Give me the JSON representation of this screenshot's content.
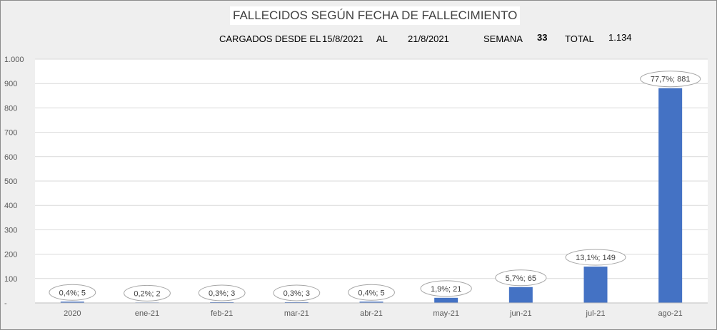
{
  "header": {
    "title": "FALLECIDOS SEGÚN FECHA DE FALLECIMIENTO",
    "cargados_label": "CARGADOS DESDE EL",
    "date_from": "15/8/2021",
    "al_label": "AL",
    "date_to": "21/8/2021",
    "semana_label": "SEMANA",
    "semana_value": "33",
    "total_label": "TOTAL",
    "total_value": "1.134"
  },
  "colors": {
    "bar": "#4472c4",
    "plot_background": "#ffffff",
    "outer_background": "#efefef",
    "gridline": "#d9d9d9",
    "label_border": "#a6a6a6"
  },
  "chart_data": {
    "type": "bar",
    "title": "FALLECIDOS SEGÚN FECHA DE FALLECIMIENTO",
    "xlabel": "",
    "ylabel": "",
    "categories": [
      "2020",
      "ene-21",
      "feb-21",
      "mar-21",
      "abr-21",
      "may-21",
      "jun-21",
      "jul-21",
      "ago-21"
    ],
    "values": [
      5,
      2,
      3,
      3,
      5,
      21,
      65,
      149,
      881
    ],
    "percent_labels": [
      "0,4%",
      "0,2%",
      "0,3%",
      "0,3%",
      "0,4%",
      "1,9%",
      "5,7%",
      "13,1%",
      "77,7%"
    ],
    "data_labels": [
      "0,4%; 5",
      "0,2%; 2",
      "0,3%; 3",
      "0,3%; 3",
      "0,4%; 5",
      "1,9%; 21",
      "5,7%; 65",
      "13,1%; 149",
      "77,7%; 881"
    ],
    "ylim": [
      0,
      1000
    ],
    "yticks": [
      0,
      100,
      200,
      300,
      400,
      500,
      600,
      700,
      800,
      900,
      1000
    ],
    "ytick_labels": [
      "-",
      "100",
      "200",
      "300",
      "400",
      "500",
      "600",
      "700",
      "800",
      "900",
      "1.000"
    ],
    "grid": true,
    "legend": "none"
  }
}
